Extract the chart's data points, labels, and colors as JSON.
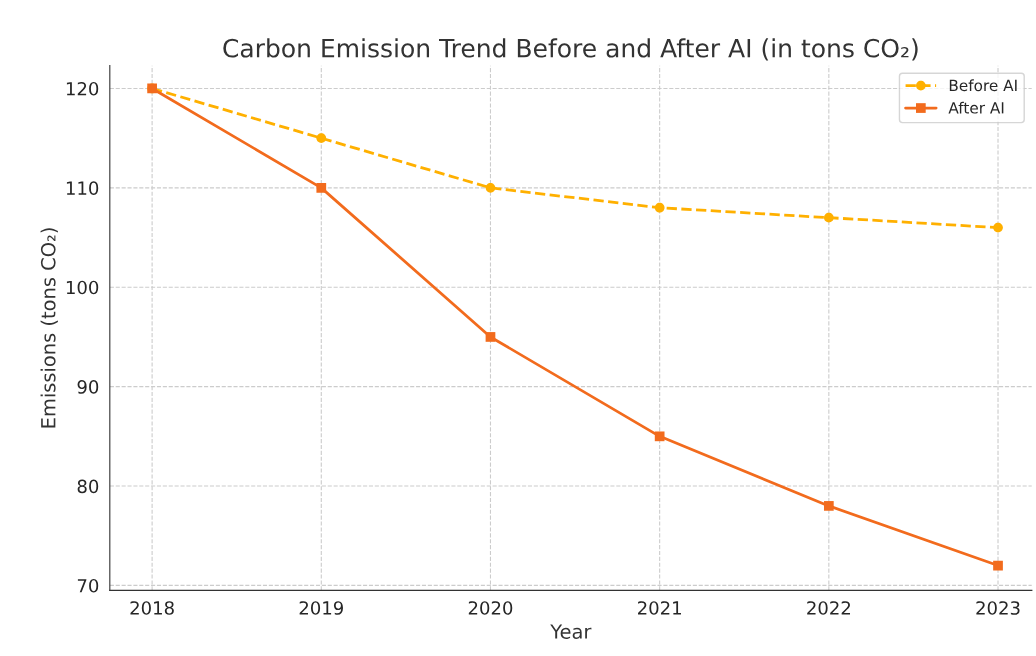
{
  "chart_data": {
    "type": "line",
    "title": "Carbon Emission Trend Before and After AI (in tons CO₂)",
    "xlabel": "Year",
    "ylabel": "Emissions (tons CO₂)",
    "x": [
      2018,
      2019,
      2020,
      2021,
      2022,
      2023
    ],
    "series": [
      {
        "name": "Before AI",
        "color": "#ffb000",
        "marker": "circle",
        "line_style": "dashed",
        "values": [
          120,
          115,
          110,
          108,
          107,
          106
        ]
      },
      {
        "name": "After AI",
        "color": "#f26b1d",
        "marker": "square",
        "line_style": "solid",
        "values": [
          120,
          110,
          95,
          85,
          78,
          72
        ]
      }
    ],
    "xlim": [
      2017.75,
      2023.2
    ],
    "xticks": [
      2018,
      2019,
      2020,
      2021,
      2022,
      2023
    ],
    "ylim": [
      69.5,
      122.3
    ],
    "yticks": [
      70,
      80,
      90,
      100,
      110,
      120
    ],
    "grid": true,
    "legend": "top right"
  }
}
